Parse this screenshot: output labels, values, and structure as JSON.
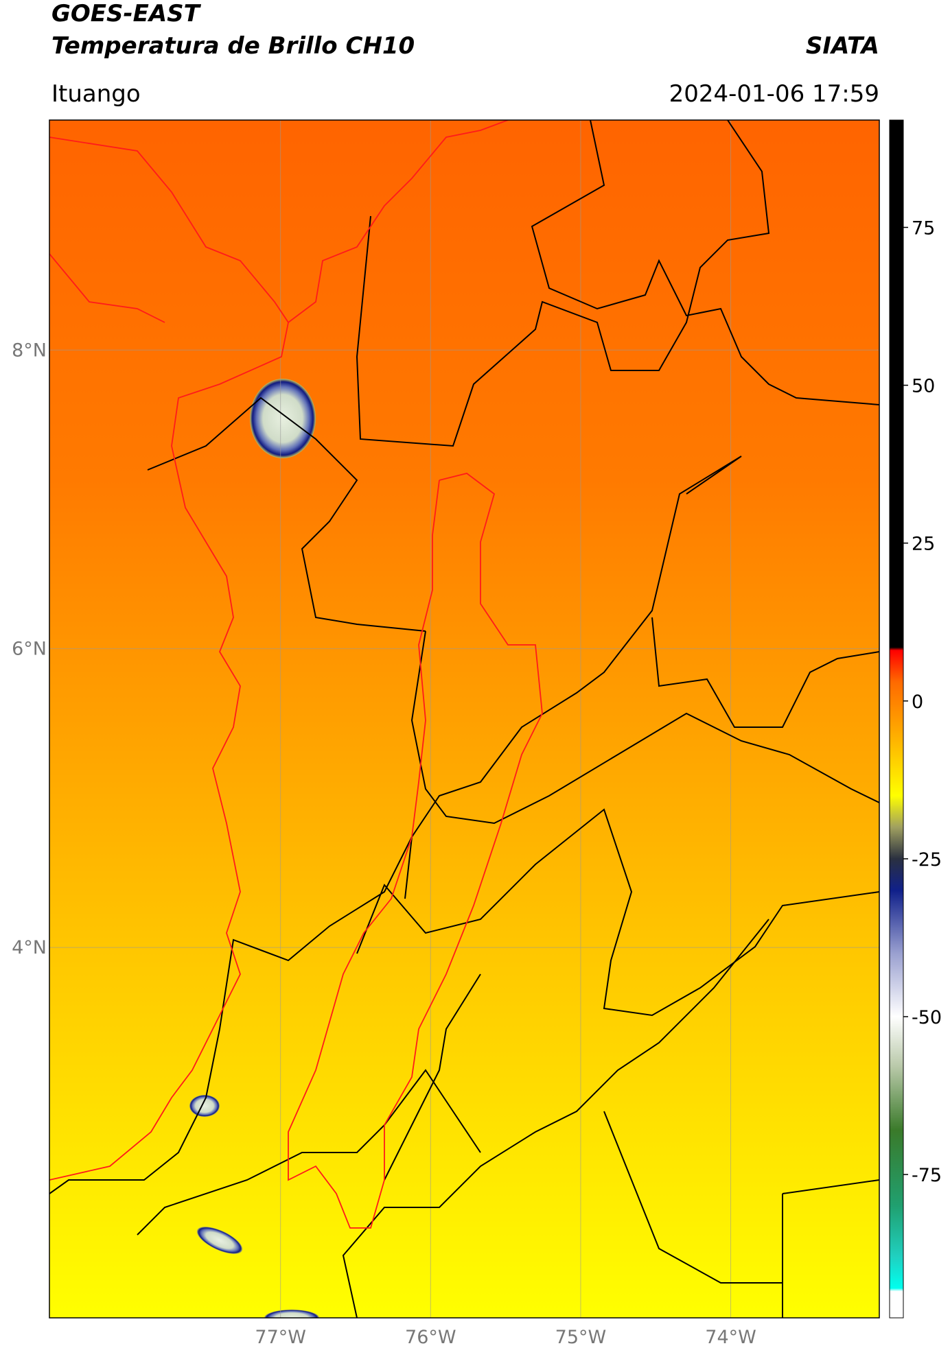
{
  "header": {
    "title": "GOES-EAST",
    "subtitle": "Temperatura de Brillo CH10",
    "source": "SIATA",
    "location": "Ituango",
    "datetime": "2024-01-06 17:59"
  },
  "map": {
    "xlim": [
      -78.54,
      -73.01
    ],
    "ylim": [
      1.52,
      9.54
    ],
    "xticks": [
      {
        "value": -77,
        "label": "77°W"
      },
      {
        "value": -76,
        "label": "76°W"
      },
      {
        "value": -75,
        "label": "75°W"
      },
      {
        "value": -74,
        "label": "74°W"
      }
    ],
    "yticks": [
      {
        "value": 8,
        "label": "8°N"
      },
      {
        "value": 6,
        "label": "6°N"
      },
      {
        "value": 4,
        "label": "4°N"
      }
    ],
    "grid": true
  },
  "colorbar": {
    "clim": [
      -97.7,
      92
    ],
    "ticks": [
      75,
      50,
      25,
      0,
      -25,
      -50,
      -75
    ],
    "colormap": [
      {
        "value": -97.7,
        "color": "#ffffff"
      },
      {
        "value": -93.5,
        "color": "#ffffff"
      },
      {
        "value": -93,
        "color": "#00ffee"
      },
      {
        "value": -88,
        "color": "#20d0c0"
      },
      {
        "value": -80,
        "color": "#20a070"
      },
      {
        "value": -68,
        "color": "#3a7a2a"
      },
      {
        "value": -58,
        "color": "#b8c8a8"
      },
      {
        "value": -50,
        "color": "#ffffff"
      },
      {
        "value": -40,
        "color": "#9aa0d0"
      },
      {
        "value": -30,
        "color": "#10208a"
      },
      {
        "value": -25,
        "color": "#2a3040"
      },
      {
        "value": -20,
        "color": "#a0a060"
      },
      {
        "value": -15,
        "color": "#ffff00"
      },
      {
        "value": -5,
        "color": "#ffaa00"
      },
      {
        "value": 3,
        "color": "#ff6a00"
      },
      {
        "value": 8,
        "color": "#ff0000"
      },
      {
        "value": 8.5,
        "color": "#000000"
      },
      {
        "value": 92,
        "color": "#000000"
      }
    ]
  }
}
